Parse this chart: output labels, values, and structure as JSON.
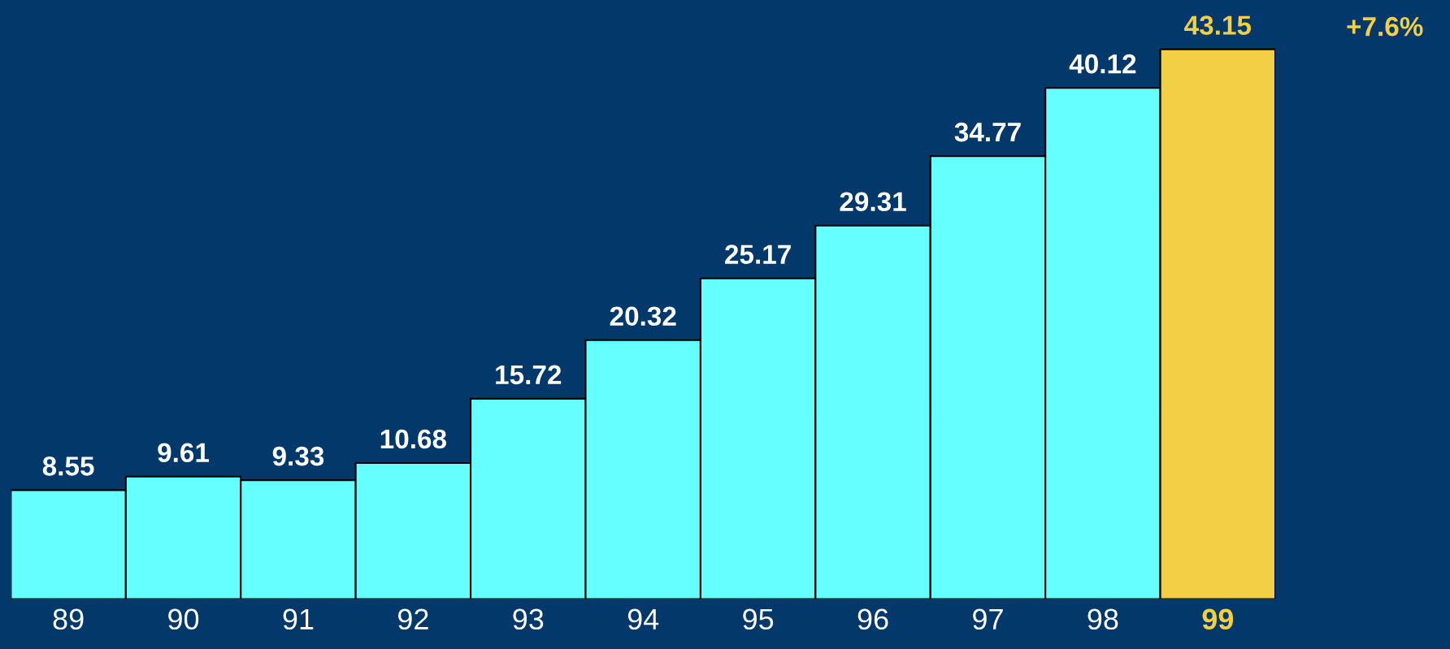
{
  "chart_data": {
    "type": "bar",
    "categories": [
      "89",
      "90",
      "91",
      "92",
      "93",
      "94",
      "95",
      "96",
      "97",
      "98",
      "99"
    ],
    "values": [
      8.55,
      9.61,
      9.33,
      10.68,
      15.72,
      20.32,
      25.17,
      29.31,
      34.77,
      40.12,
      43.15
    ],
    "colors": [
      "#66ffff",
      "#66ffff",
      "#66ffff",
      "#66ffff",
      "#66ffff",
      "#66ffff",
      "#66ffff",
      "#66ffff",
      "#66ffff",
      "#66ffff",
      "#f2cf44"
    ],
    "data_labels": true,
    "annotations": [
      "+7.6%"
    ]
  }
}
